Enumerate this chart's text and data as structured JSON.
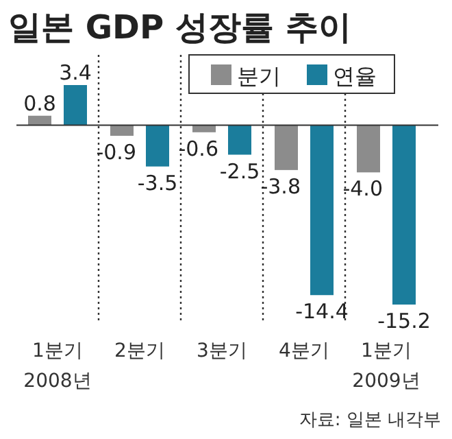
{
  "chart_data": {
    "type": "bar",
    "title": "일본 GDP 성장률 추이",
    "categories": [
      "1분기\n2008년",
      "2분기",
      "3분기",
      "4분기",
      "1분기\n2009년"
    ],
    "series": [
      {
        "name": "분기",
        "color": "#8c8c8c",
        "values": [
          0.8,
          -0.9,
          -0.6,
          -3.8,
          -4.0
        ],
        "value_labels": [
          "0.8",
          "-0.9",
          "-0.6",
          "-3.8",
          "-4.0"
        ]
      },
      {
        "name": "연율",
        "color": "#1b7d9c",
        "values": [
          3.4,
          -3.5,
          -2.5,
          -14.4,
          -15.2
        ],
        "value_labels": [
          "3.4",
          "-3.5",
          "-2.5",
          "-14.4",
          "-15.2"
        ]
      }
    ],
    "legend": "top right",
    "grid": "x",
    "line_style": "dotted",
    "annotations": [
      "자료: 일본 내각부"
    ]
  }
}
